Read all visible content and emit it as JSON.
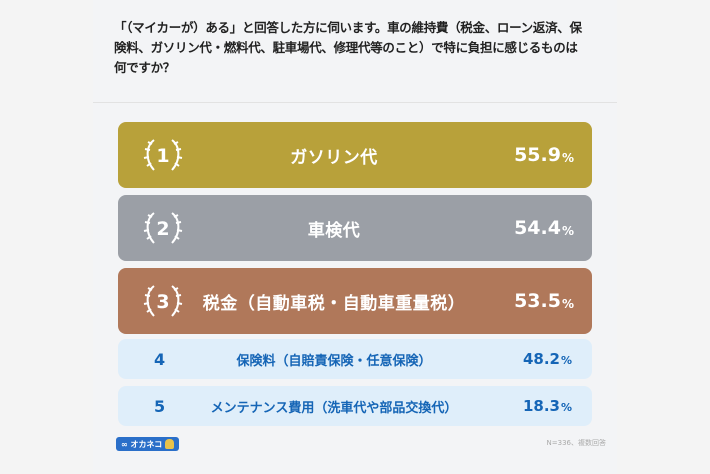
{
  "question": "「（マイカーが）ある」と回答した方に伺います。車の維持費（税金、ローン返済、保険料、ガソリン代・燃料代、駐車場代、修理代等のこと）で特に負担に感じるものは何ですか？",
  "chart_data": {
    "type": "bar",
    "title": "「（マイカーが）ある」と回答した方に伺います。車の維持費（税金、ローン返済、保険料、ガソリン代・燃料代、駐車場代、修理代等のこと）で特に負担に感じるものは何ですか？",
    "unit": "%",
    "categories": [
      "ガソリン代",
      "車検代",
      "税金（自動車税・自動車重量税）",
      "保険料（自賠責保険・任意保険）",
      "メンテナンス費用（洗車代や部品交換代）"
    ],
    "ranks": [
      "1",
      "2",
      "3",
      "4",
      "5"
    ],
    "values": [
      55.9,
      54.4,
      53.5,
      48.2,
      18.3
    ],
    "colors": {
      "rank1": "#b8a13a",
      "rank2": "#9b9fa6",
      "rank3": "#b0785a",
      "others_bg": "#dfeefa",
      "others_text": "#1565b6"
    }
  },
  "rows": [
    {
      "rank": "1",
      "label": "ガソリン代",
      "value": "55.9",
      "unit": "%"
    },
    {
      "rank": "2",
      "label": "車検代",
      "value": "54.4",
      "unit": "%"
    },
    {
      "rank": "3",
      "label": "税金（自動車税・自動車重量税）",
      "value": "53.5",
      "unit": "%"
    },
    {
      "rank": "4",
      "label": "保険料（自賠責保険・任意保険）",
      "value": "48.2",
      "unit": "%"
    },
    {
      "rank": "5",
      "label": "メンテナンス費用（洗車代や部品交換代）",
      "value": "18.3",
      "unit": "%"
    }
  ],
  "footer": {
    "logo_text": "∞ オカネコ",
    "note": "N=336、複数回答"
  }
}
